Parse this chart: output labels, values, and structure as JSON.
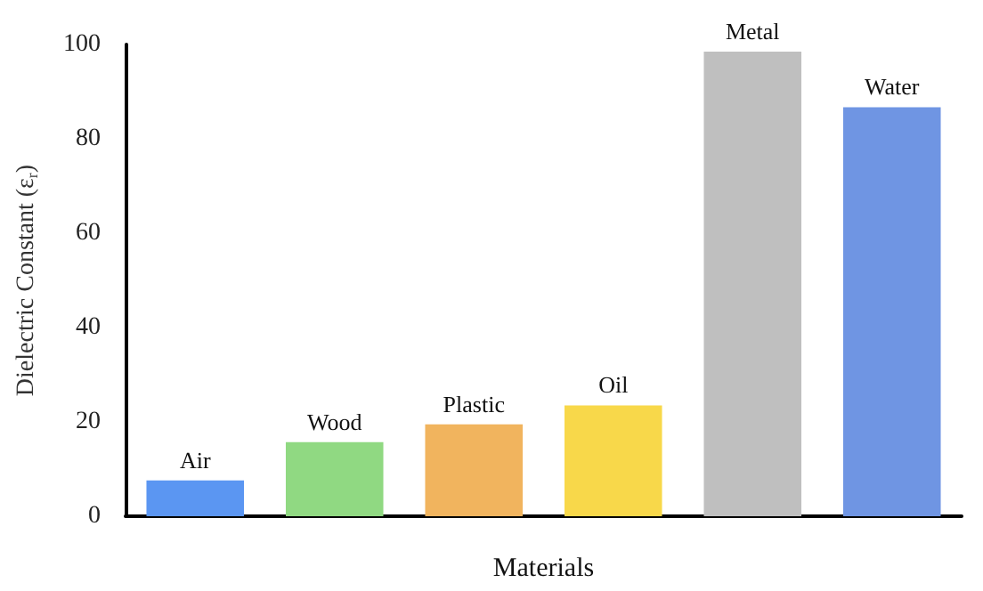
{
  "chart_data": {
    "type": "bar",
    "categories": [
      "Air",
      "Wood",
      "Plastic",
      "Oil",
      "Metal",
      "Water"
    ],
    "values": [
      7.6,
      15.7,
      19.5,
      23.5,
      98.5,
      86.7
    ],
    "colors": [
      "#5b96f2",
      "#90d982",
      "#f1b45e",
      "#f8d84a",
      "#bfbfbf",
      "#6f95e3"
    ],
    "xlabel": "Materials",
    "ylabel": "Dielectric Constant (ε$_{r}$)",
    "ylim": [
      0,
      100
    ],
    "yticks": [
      0,
      20,
      40,
      60,
      80,
      100
    ],
    "grid": false,
    "tick_labels": "y"
  }
}
